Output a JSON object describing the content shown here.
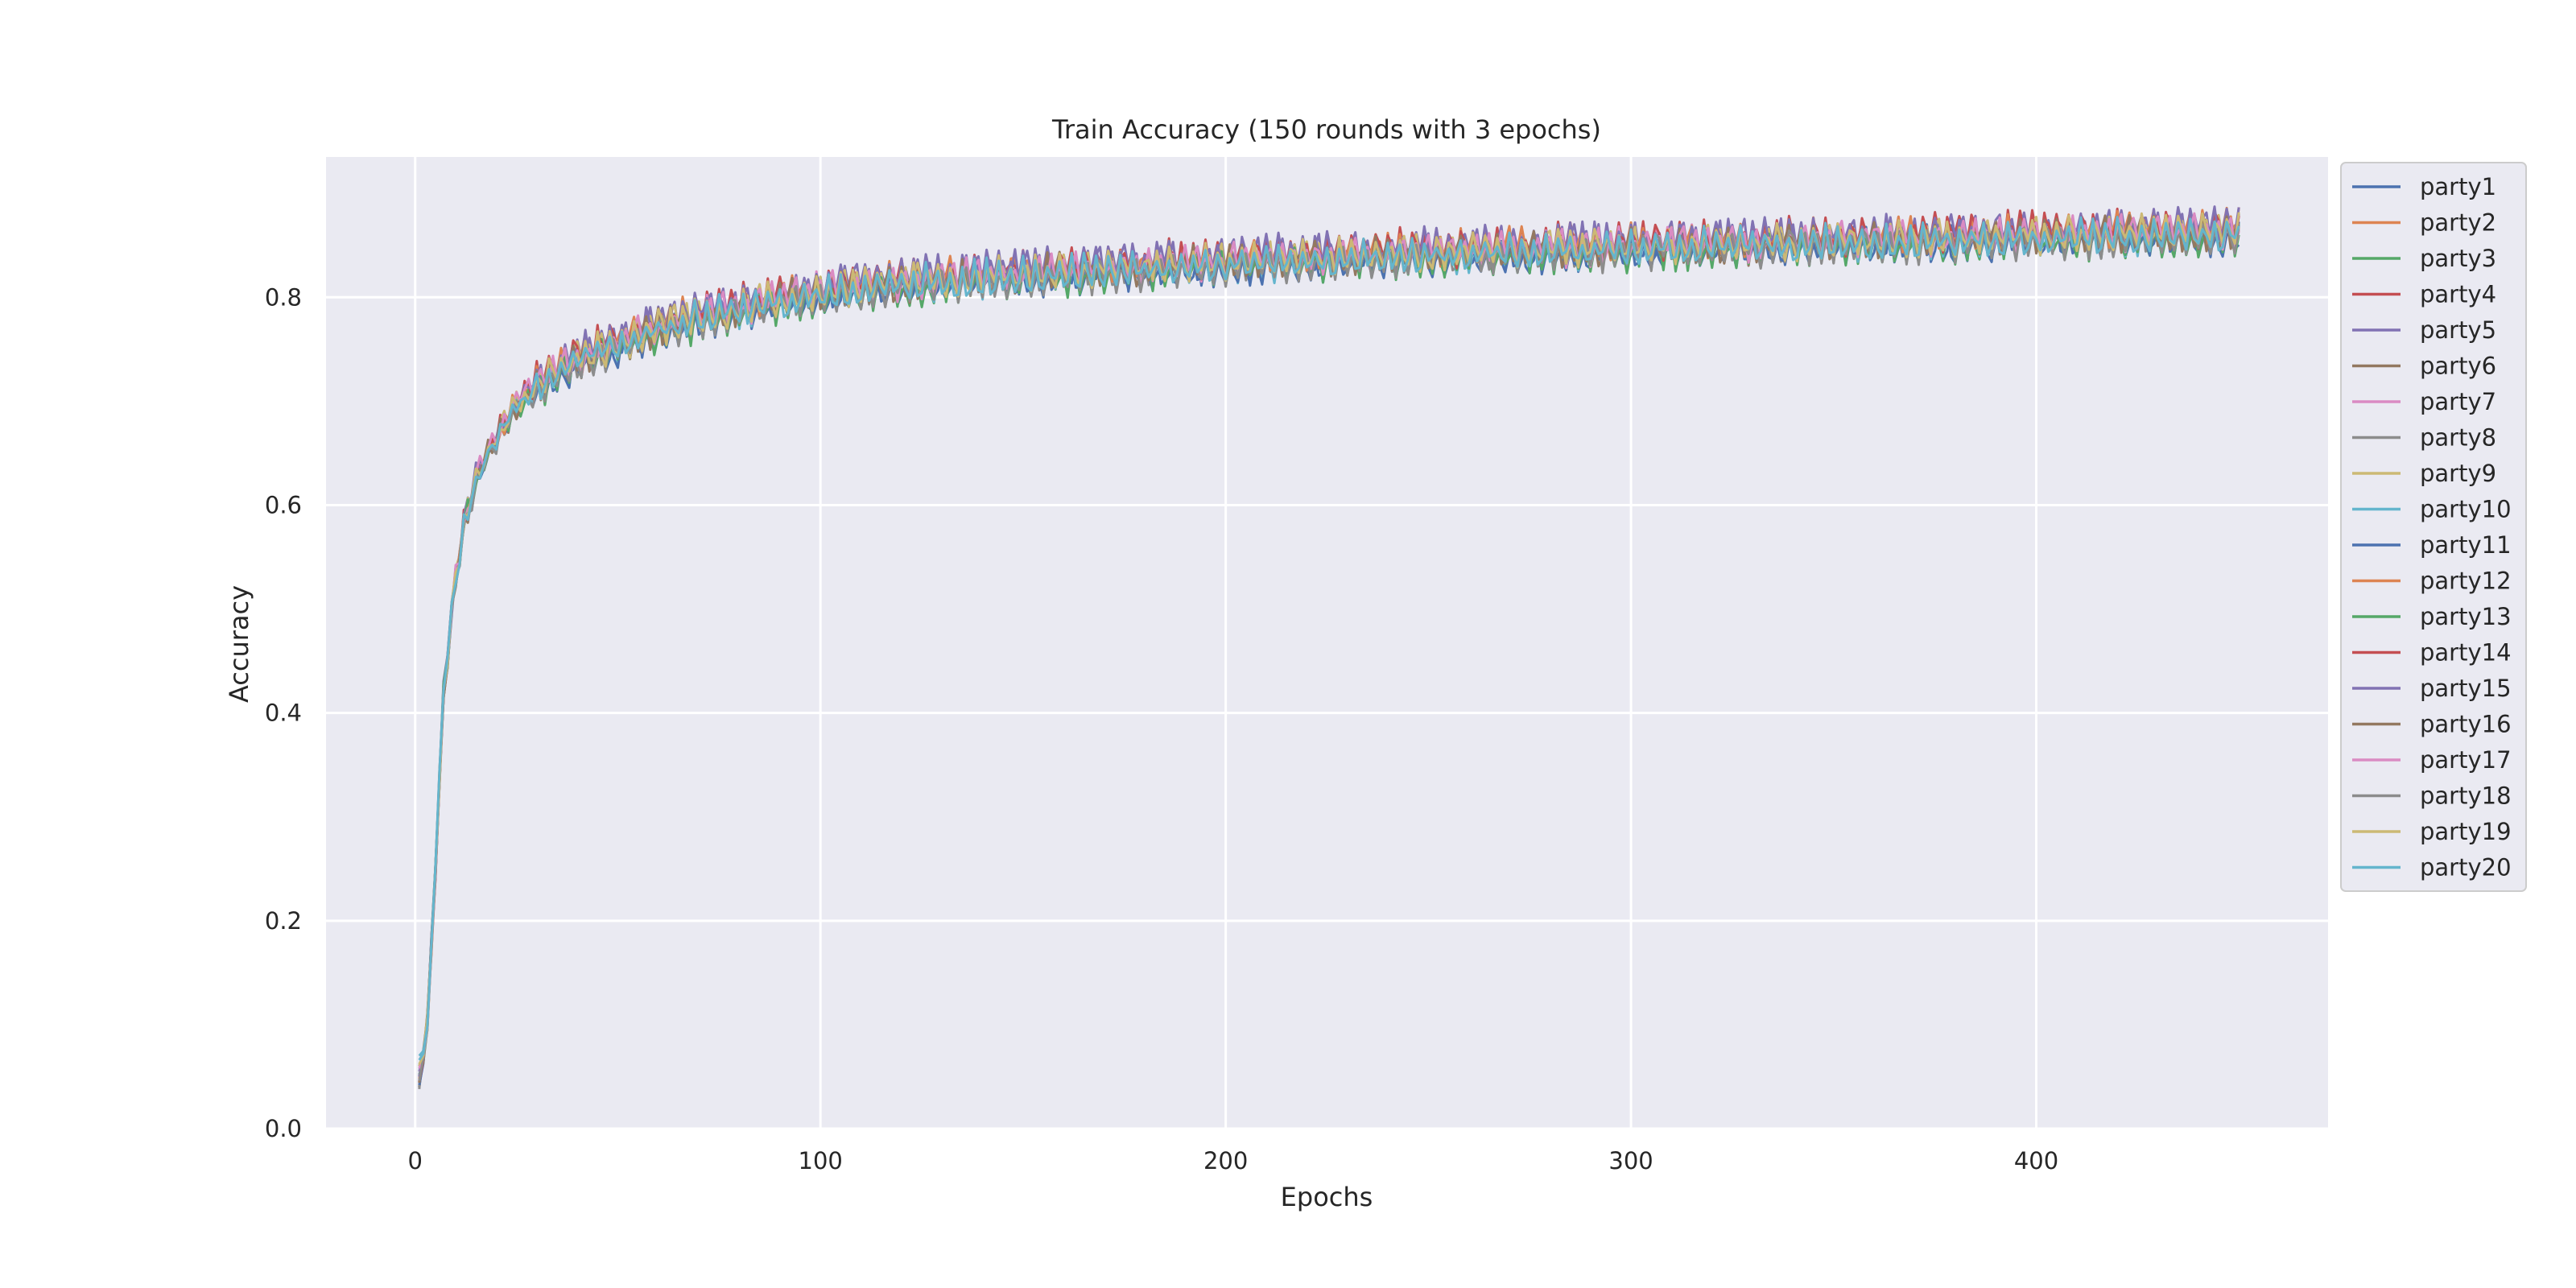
{
  "chart_data": {
    "type": "line",
    "title": "Train Accuracy (150 rounds with 3 epochs)",
    "xlabel": "Epochs",
    "ylabel": "Accuracy",
    "xlim": [
      -22,
      472
    ],
    "ylim": [
      0.0,
      0.935
    ],
    "xticks": [
      0,
      100,
      200,
      300,
      400
    ],
    "yticks": [
      0.0,
      0.2,
      0.4,
      0.6,
      0.8
    ],
    "xtick_labels": [
      "0",
      "100",
      "200",
      "300",
      "400"
    ],
    "ytick_labels": [
      "0.0",
      "0.2",
      "0.4",
      "0.6",
      "0.8"
    ],
    "grid": true,
    "background": "#eaeaf2",
    "legend_position": "outside-right",
    "trend_anchors_x": [
      1,
      3,
      5,
      7,
      10,
      12,
      15,
      20,
      25,
      30,
      40,
      50,
      60,
      75,
      90,
      100,
      125,
      150,
      200,
      250,
      300,
      350,
      400,
      450
    ],
    "trend_anchors_y": [
      0.045,
      0.1,
      0.25,
      0.42,
      0.53,
      0.58,
      0.625,
      0.665,
      0.695,
      0.715,
      0.74,
      0.755,
      0.77,
      0.785,
      0.797,
      0.805,
      0.815,
      0.822,
      0.833,
      0.842,
      0.848,
      0.853,
      0.858,
      0.862
    ],
    "series": [
      {
        "name": "party1",
        "color": "#4c72b0",
        "start": 0.04,
        "plateau_offset": -0.004,
        "phase": 0.0
      },
      {
        "name": "party2",
        "color": "#dd8452",
        "start": 0.06,
        "plateau_offset": 0.002,
        "phase": 0.5
      },
      {
        "name": "party3",
        "color": "#55a868",
        "start": 0.05,
        "plateau_offset": -0.003,
        "phase": 1.0
      },
      {
        "name": "party4",
        "color": "#c44e52",
        "start": 0.045,
        "plateau_offset": 0.006,
        "phase": 1.5
      },
      {
        "name": "party5",
        "color": "#8172b3",
        "start": 0.055,
        "plateau_offset": 0.007,
        "phase": 0.2
      },
      {
        "name": "party6",
        "color": "#937860",
        "start": 0.04,
        "plateau_offset": 0.0,
        "phase": 0.7
      },
      {
        "name": "party7",
        "color": "#da8bc3",
        "start": 0.05,
        "plateau_offset": 0.001,
        "phase": 1.2
      },
      {
        "name": "party8",
        "color": "#8c8c8c",
        "start": 0.038,
        "plateau_offset": -0.002,
        "phase": 1.7
      },
      {
        "name": "party9",
        "color": "#ccb974",
        "start": 0.06,
        "plateau_offset": 0.003,
        "phase": 0.3
      },
      {
        "name": "party10",
        "color": "#64b5cd",
        "start": 0.07,
        "plateau_offset": -0.001,
        "phase": 0.8
      },
      {
        "name": "party11",
        "color": "#4c72b0",
        "start": 0.042,
        "plateau_offset": -0.006,
        "phase": 1.3
      },
      {
        "name": "party12",
        "color": "#dd8452",
        "start": 0.048,
        "plateau_offset": 0.004,
        "phase": 1.8
      },
      {
        "name": "party13",
        "color": "#55a868",
        "start": 0.052,
        "plateau_offset": -0.004,
        "phase": 0.4
      },
      {
        "name": "party14",
        "color": "#c44e52",
        "start": 0.045,
        "plateau_offset": 0.005,
        "phase": 0.9
      },
      {
        "name": "party15",
        "color": "#8172b3",
        "start": 0.05,
        "plateau_offset": 0.006,
        "phase": 1.4
      },
      {
        "name": "party16",
        "color": "#937860",
        "start": 0.044,
        "plateau_offset": 0.0,
        "phase": 1.9
      },
      {
        "name": "party17",
        "color": "#da8bc3",
        "start": 0.058,
        "plateau_offset": 0.002,
        "phase": 0.1
      },
      {
        "name": "party18",
        "color": "#8c8c8c",
        "start": 0.046,
        "plateau_offset": -0.003,
        "phase": 0.6
      },
      {
        "name": "party19",
        "color": "#ccb974",
        "start": 0.062,
        "plateau_offset": 0.001,
        "phase": 1.1
      },
      {
        "name": "party20",
        "color": "#64b5cd",
        "start": 0.066,
        "plateau_offset": -0.002,
        "phase": 1.6
      }
    ]
  }
}
